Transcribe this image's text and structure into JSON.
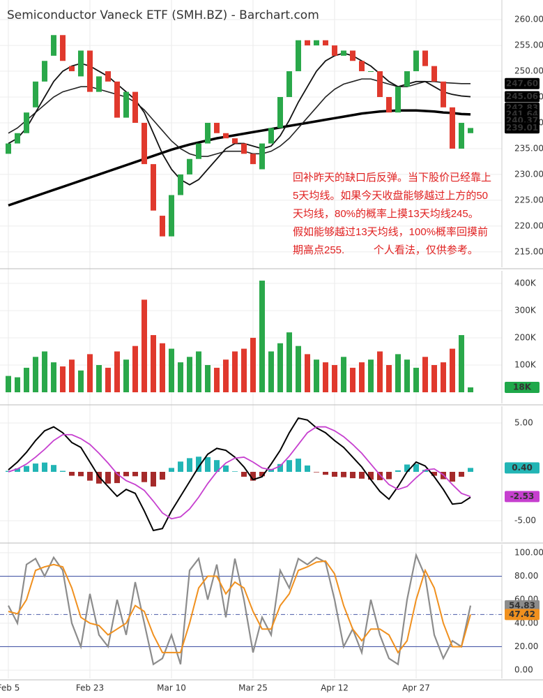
{
  "chart_data": [
    {
      "type": "candlestick",
      "title": "Semiconductor Vaneck ETF (SMH.BZ) - Barchart.com",
      "ylim": [
        212,
        263.8
      ],
      "yticks": [
        {
          "value": 215,
          "label": "215.00"
        },
        {
          "value": 220,
          "label": "220.00"
        },
        {
          "value": 225,
          "label": "225.00"
        },
        {
          "value": 230,
          "label": "230.00"
        },
        {
          "value": 235,
          "label": "235.00"
        },
        {
          "value": 240,
          "label": "240.00"
        },
        {
          "value": 245,
          "label": "245.00"
        },
        {
          "value": 250,
          "label": "250.00"
        },
        {
          "value": 255,
          "label": "255.00"
        },
        {
          "value": 260,
          "label": "260.00"
        }
      ],
      "open": [
        234,
        236,
        238,
        243,
        248,
        253,
        257,
        251,
        249,
        254,
        246,
        250,
        248,
        241,
        246,
        240,
        232,
        222,
        218,
        226,
        230,
        233,
        236,
        240,
        238,
        237,
        236,
        234,
        231,
        236,
        239,
        245,
        250,
        256,
        255,
        256,
        255,
        253,
        254,
        252,
        250,
        250,
        245,
        242,
        247,
        250,
        254,
        251,
        248,
        243,
        235,
        238
      ],
      "close": [
        236,
        238,
        242,
        248,
        252,
        257,
        252,
        250,
        254,
        246,
        249,
        248,
        241,
        246,
        240,
        232,
        223,
        218,
        226,
        230,
        233,
        236,
        240,
        238,
        237,
        236,
        234,
        232,
        236,
        239,
        245,
        250,
        256,
        255,
        256,
        255,
        253,
        254,
        252,
        250,
        250,
        245,
        242,
        247,
        250,
        254,
        251,
        248,
        243,
        235,
        240,
        239
      ],
      "up_color": "#2aa84a",
      "down_color": "#e0392d",
      "series": [
        {
          "color": "#000000",
          "width": 3.5,
          "values": [
            224,
            224.6,
            225.2,
            225.8,
            226.4,
            227,
            227.6,
            228.2,
            228.8,
            229.4,
            230,
            230.6,
            231.2,
            231.8,
            232.4,
            233,
            233.6,
            234.2,
            234.8,
            235.3,
            235.8,
            236.2,
            236.6,
            237,
            237.3,
            237.6,
            237.9,
            238.2,
            238.5,
            238.8,
            239.1,
            239.4,
            239.7,
            240,
            240.3,
            240.6,
            240.9,
            241.2,
            241.5,
            241.8,
            242,
            242.2,
            242.3,
            242.4,
            242.4,
            242.4,
            242.3,
            242.2,
            242,
            241.9,
            241.7,
            241.64
          ]
        },
        {
          "color": "#222222",
          "width": 1.6,
          "values": [
            238,
            239,
            240.5,
            242,
            243.5,
            245,
            246,
            246.5,
            247,
            247,
            246.5,
            246,
            245.5,
            245,
            244,
            242.5,
            240.5,
            238.5,
            236.5,
            235,
            234,
            233.5,
            233.5,
            234,
            234.5,
            234.5,
            234.5,
            234,
            234,
            234.5,
            235.5,
            237,
            239,
            241,
            243,
            245,
            246.5,
            247.5,
            248,
            248.5,
            248.5,
            248,
            247.5,
            247,
            247,
            247.5,
            248,
            248,
            247.8,
            247.7,
            247.6,
            247.6
          ]
        },
        {
          "color": "#111111",
          "width": 1.8,
          "values": [
            236,
            237,
            239,
            242,
            245,
            248,
            250,
            251,
            251.5,
            251,
            250,
            249,
            247.5,
            246,
            244.5,
            242,
            238,
            234,
            231,
            229,
            228,
            229,
            231,
            233,
            235,
            236,
            236,
            235.5,
            235,
            235.5,
            237.5,
            240.5,
            244,
            247,
            250,
            252,
            253,
            253.5,
            253,
            252,
            251,
            249.5,
            248,
            247,
            247.5,
            248,
            248,
            247,
            246,
            245.5,
            245.2,
            245.06
          ]
        }
      ],
      "tags": [
        {
          "value": 247.6,
          "label": "247.60",
          "color": "#000000"
        },
        {
          "value": 245.06,
          "label": "245.06",
          "color": "#000000"
        },
        {
          "value": 242.83,
          "label": "242.83",
          "color": "#000000"
        },
        {
          "value": 241.64,
          "label": "241.64",
          "color": "#000000"
        },
        {
          "value": 240.37,
          "label": "240.37",
          "color": "#000000"
        },
        {
          "value": 239.01,
          "label": "239.01",
          "color": "#000000"
        }
      ],
      "annotation": [
        "回补昨天的缺口后反弹。当下股价已经靠上",
        "5天均线。如果今天收盘能够越过上方的50",
        "天均线，80%的概率上摸13天均线245。",
        "假如能够越过13天均线，100%概率回摸前",
        "期高点255.          个人看法，仅供参考。"
      ]
    },
    {
      "type": "volume",
      "ylim": [
        -41000,
        446000
      ],
      "yticks": [
        {
          "value": 100000,
          "label": "100K"
        },
        {
          "value": 200000,
          "label": "200K"
        },
        {
          "value": 300000,
          "label": "300K"
        },
        {
          "value": 400000,
          "label": "400K"
        }
      ],
      "values": [
        60000,
        55000,
        90000,
        130000,
        150000,
        110000,
        95000,
        120000,
        80000,
        140000,
        100000,
        90000,
        150000,
        120000,
        170000,
        340000,
        210000,
        180000,
        160000,
        110000,
        130000,
        150000,
        100000,
        90000,
        120000,
        150000,
        160000,
        200000,
        410000,
        150000,
        180000,
        220000,
        170000,
        140000,
        120000,
        110000,
        100000,
        130000,
        90000,
        110000,
        120000,
        150000,
        100000,
        140000,
        120000,
        90000,
        130000,
        100000,
        110000,
        160000,
        210000,
        18000
      ],
      "tags": [
        {
          "value": 18000,
          "label": "18K",
          "color": "#1fa84a"
        }
      ]
    },
    {
      "type": "macd",
      "ylim": [
        -7.14,
        6.71
      ],
      "yticks": [
        {
          "value": -5,
          "label": "-5.00"
        },
        {
          "value": 5,
          "label": "5.00"
        }
      ],
      "hist_up_color": "#22b5b5",
      "hist_down_color": "#a52a2a",
      "hist": [
        0.1,
        0.35,
        0.6,
        0.85,
        0.95,
        0.7,
        0.1,
        -0.4,
        -0.45,
        -0.9,
        -1.2,
        -1.2,
        -1.15,
        -0.45,
        -0.45,
        -1.05,
        -1.5,
        -0.8,
        0.4,
        1.05,
        1.4,
        1.55,
        1.5,
        1.2,
        0.65,
        0.05,
        -0.5,
        -0.9,
        -0.45,
        0.3,
        0.8,
        1.2,
        1.35,
        0.65,
        -0.05,
        -0.3,
        -0.5,
        -0.55,
        -0.65,
        -0.7,
        -0.8,
        -0.85,
        -0.75,
        0.15,
        0.75,
        0.8,
        0.2,
        -0.4,
        -0.75,
        -1,
        -0.5,
        0.4
      ],
      "series": [
        {
          "color": "#000000",
          "width": 2,
          "values": [
            0.2,
            1,
            2,
            3.2,
            4.2,
            4.6,
            4,
            3,
            2.5,
            1,
            -0.5,
            -1.5,
            -2.5,
            -1.8,
            -2.2,
            -4,
            -6,
            -5.8,
            -4,
            -2.5,
            -1,
            0.5,
            1.8,
            2.4,
            2.2,
            1.5,
            0.5,
            -0.8,
            -0.5,
            0.8,
            2.2,
            4,
            5.5,
            5.3,
            4.5,
            4,
            3.2,
            2.5,
            1.5,
            0.5,
            -0.8,
            -2,
            -2.8,
            -1.5,
            0,
            1,
            0.6,
            -0.5,
            -1.8,
            -3.3,
            -3.2,
            -2.6
          ]
        },
        {
          "color": "#c63fcf",
          "width": 1.8,
          "values": [
            0,
            0.3,
            0.8,
            1.5,
            2.3,
            3.2,
            3.8,
            3.8,
            3.4,
            2.8,
            1.9,
            0.9,
            -0.2,
            -0.9,
            -1.3,
            -1.9,
            -3,
            -4.2,
            -4.8,
            -4.6,
            -3.8,
            -2.6,
            -1.2,
            0,
            0.9,
            1.4,
            1.5,
            1,
            0.4,
            0.2,
            0.6,
            1.6,
            2.8,
            4,
            4.6,
            4.6,
            4.2,
            3.6,
            2.8,
            1.9,
            0.8,
            -0.3,
            -1.3,
            -1.8,
            -1.5,
            -0.6,
            0.2,
            0.3,
            -0.3,
            -1.3,
            -2.2,
            -2.53
          ]
        }
      ],
      "tags": [
        {
          "value": 0.4,
          "label": "0.40",
          "color": "#22b5b5"
        },
        {
          "value": -2.53,
          "label": "-2.53",
          "color": "#c63fcf"
        }
      ]
    },
    {
      "type": "stochastic",
      "ylim": [
        -7.1,
        107.1
      ],
      "yticks": [
        {
          "value": 0,
          "label": "0.00"
        },
        {
          "value": 20,
          "label": "20.00"
        },
        {
          "value": 40,
          "label": "40.00"
        },
        {
          "value": 60,
          "label": "60.00"
        },
        {
          "value": 80,
          "label": "80.00"
        },
        {
          "value": 100,
          "label": "100.00"
        }
      ],
      "levels": [
        20,
        80
      ],
      "level_color": "#4a5aa8",
      "series": [
        {
          "color": "#8c8c8c",
          "width": 2.2,
          "values": [
            55,
            40,
            90,
            95,
            80,
            96,
            85,
            40,
            20,
            65,
            30,
            20,
            60,
            30,
            75,
            40,
            5,
            10,
            30,
            5,
            85,
            95,
            60,
            90,
            45,
            95,
            60,
            15,
            45,
            30,
            85,
            70,
            95,
            90,
            96,
            92,
            60,
            20,
            35,
            15,
            60,
            30,
            10,
            5,
            60,
            98,
            80,
            30,
            10,
            25,
            20,
            55
          ]
        },
        {
          "color": "#f0901e",
          "width": 2,
          "values": [
            50,
            48,
            60,
            85,
            88,
            90,
            88,
            70,
            45,
            40,
            38,
            30,
            35,
            40,
            55,
            50,
            30,
            15,
            15,
            15,
            40,
            70,
            80,
            80,
            65,
            75,
            70,
            50,
            35,
            35,
            55,
            65,
            85,
            88,
            92,
            93,
            82,
            55,
            35,
            25,
            35,
            35,
            30,
            15,
            25,
            60,
            85,
            70,
            40,
            20,
            20,
            47.42
          ]
        }
      ],
      "tags": [
        {
          "value": 54.83,
          "label": "54.83",
          "color": "#8c8c8c"
        },
        {
          "value": 47.42,
          "label": "47.42",
          "color": "#f0901e"
        }
      ],
      "categories": [
        "Feb 5",
        null,
        null,
        null,
        null,
        null,
        null,
        null,
        null,
        "Feb 23",
        null,
        null,
        null,
        null,
        null,
        null,
        null,
        null,
        "Mar 10",
        null,
        null,
        null,
        null,
        null,
        null,
        null,
        null,
        "Mar 25",
        null,
        null,
        null,
        null,
        null,
        null,
        null,
        null,
        "Apr 12",
        null,
        null,
        null,
        null,
        null,
        null,
        null,
        null,
        "Apr 27",
        null,
        null,
        null,
        null,
        null,
        null
      ]
    }
  ]
}
